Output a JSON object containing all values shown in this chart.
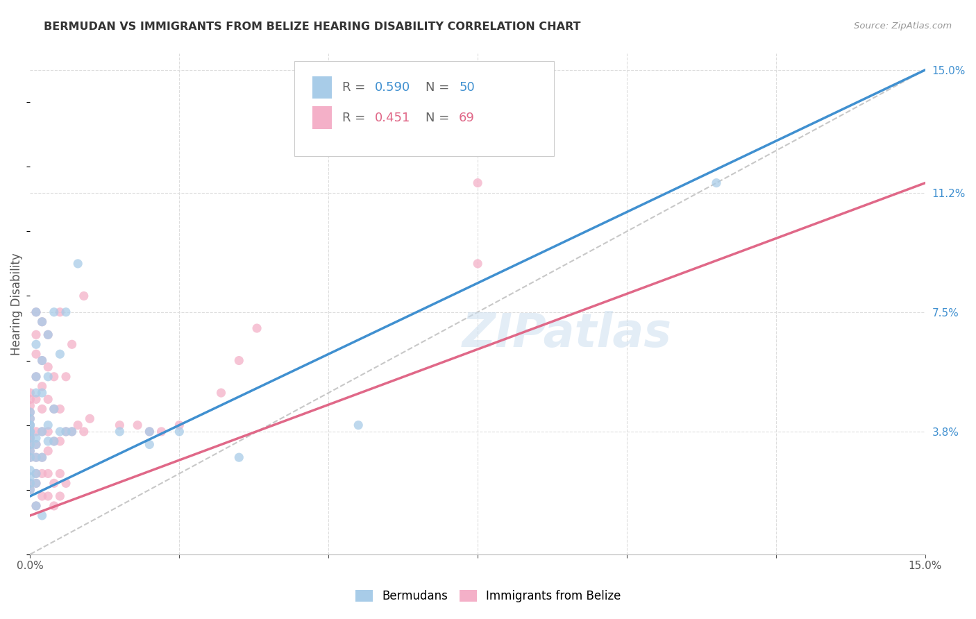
{
  "title": "BERMUDAN VS IMMIGRANTS FROM BELIZE HEARING DISABILITY CORRELATION CHART",
  "source": "Source: ZipAtlas.com",
  "ylabel": "Hearing Disability",
  "xlim": [
    0.0,
    0.15
  ],
  "ylim": [
    0.0,
    0.155
  ],
  "ytick_labels_right": [
    "15.0%",
    "11.2%",
    "7.5%",
    "3.8%"
  ],
  "ytick_positions_right": [
    0.15,
    0.112,
    0.075,
    0.038
  ],
  "watermark": "ZIPatlas",
  "legend_r1": "R = 0.590",
  "legend_n1": "N = 50",
  "legend_r2": "R = 0.451",
  "legend_n2": "N = 69",
  "color_blue": "#a8cce8",
  "color_pink": "#f4b0c8",
  "line_color_blue": "#4090d0",
  "line_color_pink": "#e06888",
  "dashed_line_color": "#c8c8c8",
  "grid_color": "#dddddd",
  "blue_line_x": [
    0.0,
    0.15
  ],
  "blue_line_y": [
    0.018,
    0.15
  ],
  "pink_line_x": [
    0.0,
    0.15
  ],
  "pink_line_y": [
    0.012,
    0.115
  ],
  "diag_line_x": [
    0.0,
    0.15
  ],
  "diag_line_y": [
    0.0,
    0.15
  ],
  "blue_scatter_x": [
    0.0,
    0.0,
    0.0,
    0.0,
    0.0,
    0.0,
    0.0,
    0.0,
    0.0,
    0.0,
    0.001,
    0.001,
    0.001,
    0.001,
    0.001,
    0.001,
    0.001,
    0.002,
    0.002,
    0.002,
    0.002,
    0.002,
    0.003,
    0.003,
    0.003,
    0.003,
    0.004,
    0.004,
    0.004,
    0.005,
    0.005,
    0.006,
    0.006,
    0.007,
    0.008,
    0.015,
    0.02,
    0.02,
    0.025,
    0.035,
    0.055,
    0.115,
    0.0,
    0.0,
    0.0,
    0.0,
    0.001,
    0.001,
    0.001,
    0.002
  ],
  "blue_scatter_y": [
    0.03,
    0.032,
    0.034,
    0.036,
    0.038,
    0.038,
    0.04,
    0.04,
    0.042,
    0.044,
    0.03,
    0.034,
    0.036,
    0.05,
    0.055,
    0.065,
    0.075,
    0.03,
    0.038,
    0.05,
    0.06,
    0.072,
    0.035,
    0.04,
    0.055,
    0.068,
    0.035,
    0.045,
    0.075,
    0.038,
    0.062,
    0.038,
    0.075,
    0.038,
    0.09,
    0.038,
    0.034,
    0.038,
    0.038,
    0.03,
    0.04,
    0.115,
    0.02,
    0.022,
    0.024,
    0.026,
    0.025,
    0.022,
    0.015,
    0.012
  ],
  "pink_scatter_x": [
    0.0,
    0.0,
    0.0,
    0.0,
    0.0,
    0.0,
    0.0,
    0.0,
    0.0,
    0.0,
    0.0,
    0.0,
    0.001,
    0.001,
    0.001,
    0.001,
    0.001,
    0.001,
    0.001,
    0.001,
    0.002,
    0.002,
    0.002,
    0.002,
    0.002,
    0.002,
    0.003,
    0.003,
    0.003,
    0.003,
    0.003,
    0.004,
    0.004,
    0.004,
    0.005,
    0.005,
    0.005,
    0.006,
    0.006,
    0.007,
    0.007,
    0.008,
    0.009,
    0.009,
    0.01,
    0.015,
    0.018,
    0.02,
    0.022,
    0.025,
    0.032,
    0.035,
    0.038,
    0.075,
    0.075,
    0.0,
    0.0,
    0.001,
    0.001,
    0.001,
    0.002,
    0.002,
    0.003,
    0.003,
    0.004,
    0.004,
    0.005,
    0.005,
    0.006
  ],
  "pink_scatter_y": [
    0.03,
    0.032,
    0.034,
    0.036,
    0.036,
    0.038,
    0.04,
    0.042,
    0.044,
    0.046,
    0.048,
    0.05,
    0.03,
    0.034,
    0.038,
    0.048,
    0.055,
    0.062,
    0.068,
    0.075,
    0.03,
    0.038,
    0.045,
    0.052,
    0.06,
    0.072,
    0.032,
    0.038,
    0.048,
    0.058,
    0.068,
    0.035,
    0.045,
    0.055,
    0.035,
    0.045,
    0.075,
    0.038,
    0.055,
    0.038,
    0.065,
    0.04,
    0.038,
    0.08,
    0.042,
    0.04,
    0.04,
    0.038,
    0.038,
    0.04,
    0.05,
    0.06,
    0.07,
    0.09,
    0.115,
    0.02,
    0.022,
    0.025,
    0.022,
    0.015,
    0.025,
    0.018,
    0.025,
    0.018,
    0.022,
    0.015,
    0.025,
    0.018,
    0.022
  ]
}
